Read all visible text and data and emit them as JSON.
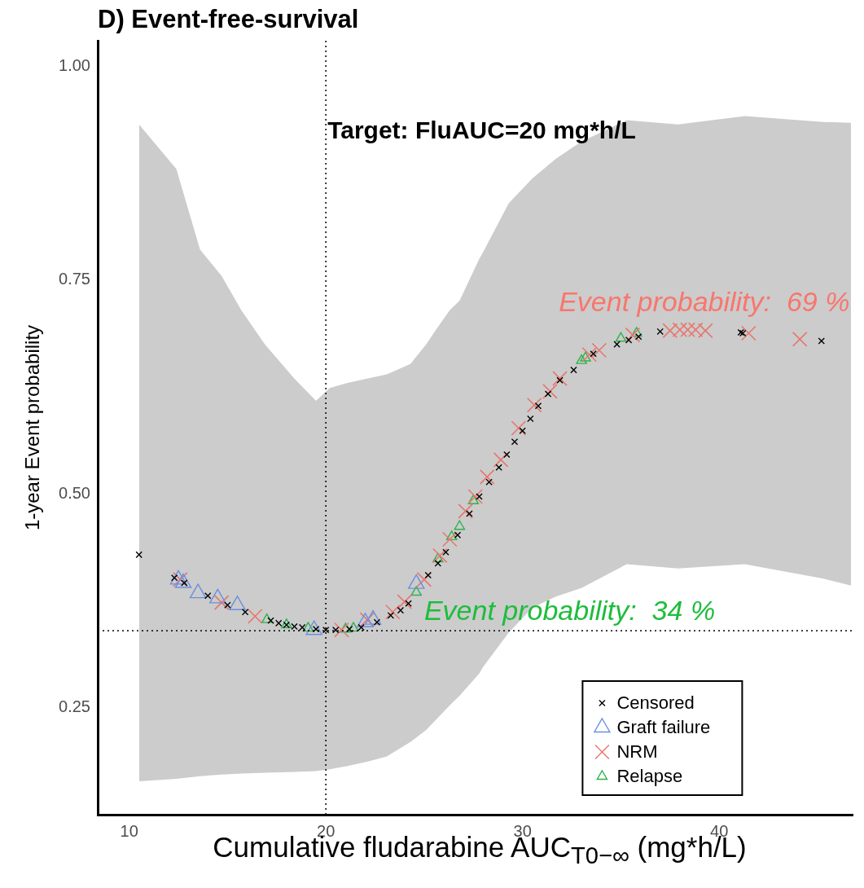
{
  "chart_data": {
    "type": "scatter",
    "title": "D) Event-free-survival",
    "xlabel": "Cumulative fludarabine AUC$_{T0−∞}$ (mg*h/L)",
    "ylabel": "1-year Event probability",
    "xlim": [
      8.4,
      46.8
    ],
    "ylim": [
      0.125,
      1.03
    ],
    "xticks": [
      10,
      20,
      30,
      40
    ],
    "yticks": [
      {
        "value": 0.25,
        "label": "0.25"
      },
      {
        "value": 0.5,
        "label": "0.50"
      },
      {
        "value": 0.75,
        "label": "0.75"
      },
      {
        "value": 1,
        "label": "1.00"
      }
    ],
    "grid": false,
    "legend": "bottom right",
    "ref_lines": [
      {
        "axis": "x",
        "value": 20,
        "label": "Target: FluAUC=20 mg*h/L",
        "color": "#000000",
        "line_style": "dotted"
      },
      {
        "axis": "y",
        "value": 0.34,
        "label": "Event probability:  34 %",
        "color": "#000000",
        "line_style": "dotted"
      }
    ],
    "annotations": [
      "Event probability:  69 %"
    ],
    "series": [
      {
        "type": "line",
        "color": "#cccccc",
        "x": [
          10.5,
          12.4,
          13.6,
          14.7,
          15.7,
          16.9,
          18.4,
          19.5,
          20.2,
          21.1,
          22.1,
          23.1,
          24.3,
          25.1,
          25.6,
          26.3,
          26.8,
          27.8,
          28.0,
          29.3,
          30.5,
          31.7,
          33.0,
          35.3,
          37.9,
          41.3,
          45.3,
          46.7
        ],
        "values": [
          null,
          null,
          null,
          null,
          null,
          null,
          null,
          null,
          null,
          null,
          null,
          null,
          null,
          null,
          null,
          null,
          null,
          null,
          null,
          null,
          null,
          null,
          null,
          null,
          null,
          null,
          null,
          null
        ],
        "upper": [
          0.932,
          0.88,
          0.786,
          0.755,
          0.715,
          0.675,
          0.635,
          0.609,
          0.624,
          0.63,
          0.635,
          0.64,
          0.652,
          0.675,
          0.692,
          0.715,
          0.726,
          0.775,
          0.783,
          0.84,
          0.869,
          0.892,
          0.912,
          0.937,
          0.932,
          0.942,
          0.935,
          0.934
        ],
        "lower": [
          0.164,
          0.167,
          0.17,
          0.172,
          0.173,
          0.174,
          0.175,
          0.176,
          0.178,
          0.182,
          0.187,
          0.193,
          0.21,
          0.224,
          0.236,
          0.253,
          0.264,
          0.29,
          0.298,
          0.338,
          0.367,
          0.38,
          0.39,
          0.418,
          0.413,
          0.418,
          0.401,
          0.393
        ]
      },
      {
        "name": "Censored",
        "color": "#000000",
        "x": [
          10.5,
          12.3,
          12.8,
          14.0,
          15.0,
          15.9,
          17.2,
          17.6,
          18.0,
          18.4,
          18.8,
          19.5,
          20.0,
          20.5,
          21.2,
          21.8,
          22.6,
          23.3,
          23.8,
          24.2,
          25.2,
          25.7,
          26.1,
          26.7,
          27.3,
          27.8,
          28.3,
          28.8,
          29.2,
          29.6,
          30.0,
          30.4,
          30.8,
          31.3,
          31.9,
          32.6,
          33.6,
          34.8,
          35.4,
          35.9,
          37.0,
          41.1,
          41.2,
          45.2
        ],
        "values": [
          0.429,
          0.402,
          0.396,
          0.381,
          0.37,
          0.362,
          0.352,
          0.349,
          0.347,
          0.345,
          0.344,
          0.342,
          0.341,
          0.341,
          0.342,
          0.344,
          0.35,
          0.358,
          0.364,
          0.372,
          0.405,
          0.419,
          0.432,
          0.452,
          0.477,
          0.497,
          0.514,
          0.531,
          0.546,
          0.561,
          0.574,
          0.588,
          0.603,
          0.617,
          0.633,
          0.645,
          0.664,
          0.675,
          0.68,
          0.684,
          0.69,
          0.689,
          0.688,
          0.679
        ]
      },
      {
        "name": "Graft failure",
        "color": "#6a8fe0",
        "marker": "triangle",
        "x": [
          12.5,
          12.75,
          13.5,
          14.5,
          15.5,
          19.4,
          22.0,
          22.4,
          24.6
        ],
        "values": [
          0.4,
          0.396,
          0.384,
          0.378,
          0.37,
          0.341,
          0.35,
          0.353,
          0.395
        ]
      },
      {
        "name": "NRM",
        "color": "#e8766d",
        "marker": "cross",
        "x": [
          12.6,
          14.7,
          16.4,
          20.8,
          22.1,
          23.4,
          24.0,
          25.0,
          25.8,
          26.3,
          27.1,
          27.6,
          28.2,
          28.9,
          29.8,
          30.6,
          31.4,
          31.9,
          33.4,
          33.9,
          35.6,
          37.5,
          38.0,
          38.4,
          38.8,
          39.3,
          41.5,
          44.1
        ],
        "values": [
          0.4,
          0.373,
          0.357,
          0.341,
          0.353,
          0.362,
          0.374,
          0.4,
          0.428,
          0.447,
          0.48,
          0.497,
          0.52,
          0.54,
          0.577,
          0.604,
          0.62,
          0.635,
          0.663,
          0.668,
          0.686,
          0.691,
          0.692,
          0.692,
          0.692,
          0.691,
          0.688,
          0.681
        ]
      },
      {
        "name": "Relapse",
        "color": "#2db34a",
        "marker": "triangle",
        "x": [
          17.0,
          18.0,
          19.1,
          21.0,
          21.4,
          24.6,
          25.7,
          26.4,
          26.8,
          27.5,
          33.0,
          33.2,
          35.0,
          35.8
        ],
        "values": [
          0.353,
          0.347,
          0.343,
          0.342,
          0.343,
          0.385,
          0.424,
          0.45,
          0.462,
          0.492,
          0.656,
          0.659,
          0.682,
          0.688
        ]
      }
    ]
  }
}
